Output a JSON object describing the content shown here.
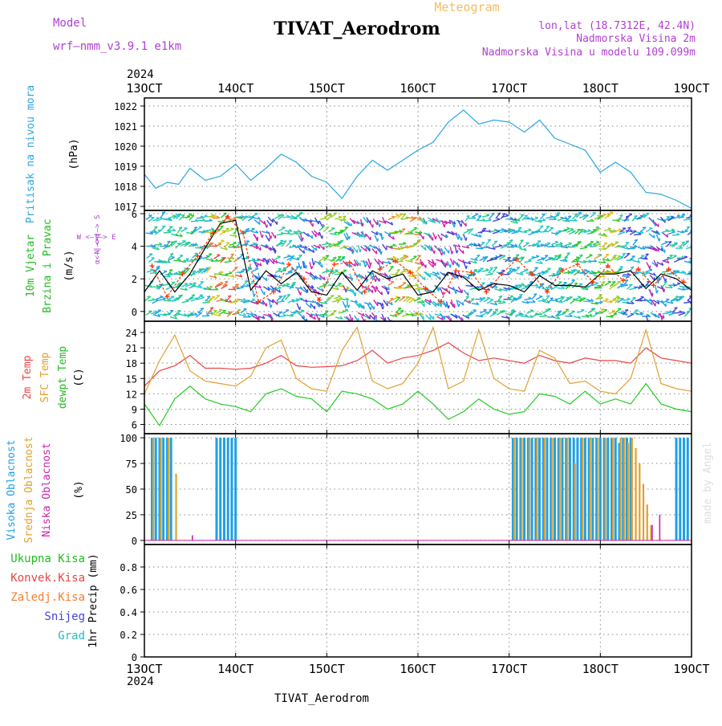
{
  "header": {
    "model_label": "Model",
    "model_value": "wrf—nmm_v3.9.1  e1km",
    "title": "TIVAT_Aerodrom",
    "meteogram": "Meteogram",
    "lonlat": "lon,lat (18.7312E, 42.4N)",
    "elev": "Nadmorska Visina 2m",
    "elev_model": "Nadmorska Visina u modelu 109.099m",
    "year_top": "2024",
    "year_bottom": "2024",
    "bottom_title": "TIVAT_Aerodrom",
    "credit": "made by Angel"
  },
  "colors": {
    "pressure": "#2aa7e0",
    "temp2m": "#e84545",
    "sfc": "#e0a030",
    "dewpt": "#22cc22",
    "high_cloud": "#1ea0e6",
    "mid_cloud": "#e0a030",
    "low_cloud": "#cc22aa",
    "wind_speed": "#000000",
    "gust": "#ff3300"
  },
  "x_ticks": [
    "13OCT",
    "14OCT",
    "15OCT",
    "16OCT",
    "17OCT",
    "18OCT",
    "19OCT"
  ],
  "panel_labels": {
    "pressure": {
      "lines": [
        {
          "text": "Pritisak na nivou mora",
          "color": "#2aa7e0"
        }
      ],
      "unit": "(hPa)"
    },
    "wind": {
      "lines": [
        {
          "text": "10m Vjetar",
          "color": "#22bb22"
        },
        {
          "text": "Brzina i Pravac",
          "color": "#22bb22"
        }
      ],
      "unit": "(m/s)",
      "compass_ns": "N <—|—> S",
      "compass_we": "W  <—|—>  E",
      "compass_alpha": "α<—|—>α"
    },
    "temp": {
      "lines": [
        {
          "text": "2m Temp",
          "color": "#e84545"
        },
        {
          "text": "SFC Temp",
          "color": "#e0a030"
        },
        {
          "text": "dewpt Temp",
          "color": "#22bb22"
        }
      ],
      "unit": "(C)"
    },
    "cloud": {
      "lines": [
        {
          "text": "Visoka Oblacnost",
          "color": "#1ea0e6"
        },
        {
          "text": "Srednja Oblacnost",
          "color": "#e0a030"
        },
        {
          "text": "Niska Oblacnost",
          "color": "#cc22aa"
        }
      ],
      "unit": "(%)"
    },
    "precip": {
      "legend": [
        {
          "text": "Ukupna Kisa",
          "color": "#22bb22"
        },
        {
          "text": "Konvek.Kisa",
          "color": "#e84545"
        },
        {
          "text": "Zaledj.Kisa",
          "color": "#f08030"
        },
        {
          "text": "Snijeg",
          "color": "#4444dd"
        },
        {
          "text": "Grad",
          "color": "#22bbbb"
        }
      ],
      "unit": "1hr Precip (mm)"
    }
  },
  "chart_data": [
    {
      "type": "line",
      "name": "pressure",
      "x_range": [
        "2024-10-13 00:00",
        "2024-10-19 00:00"
      ],
      "ylim": [
        1016.8,
        1022.4
      ],
      "yticks": [
        1017,
        1018,
        1019,
        1020,
        1021,
        1022
      ],
      "grid": true,
      "series": [
        {
          "x_hours": [
            0,
            3,
            6,
            9,
            12,
            16,
            20,
            24,
            28,
            32,
            36,
            40,
            44,
            48,
            52,
            56,
            60,
            64,
            68,
            72,
            76,
            80,
            84,
            88,
            92,
            96,
            100,
            104,
            108,
            112,
            116,
            120,
            124,
            128,
            132,
            136,
            140,
            144
          ],
          "values": [
            1018.6,
            1017.9,
            1018.2,
            1018.1,
            1018.9,
            1018.3,
            1018.5,
            1019.1,
            1018.3,
            1018.9,
            1019.6,
            1019.2,
            1018.5,
            1018.2,
            1017.4,
            1018.5,
            1019.3,
            1018.8,
            1019.3,
            1019.8,
            1020.2,
            1021.2,
            1021.8,
            1021.1,
            1021.3,
            1021.2,
            1020.7,
            1021.3,
            1020.4,
            1020.1,
            1019.8,
            1018.7,
            1019.2,
            1018.7,
            1017.7,
            1017.6,
            1017.3,
            1016.9
          ],
          "color": "#2aa7e0"
        }
      ]
    },
    {
      "type": "line",
      "name": "wind",
      "x_range": [
        "2024-10-13 00:00",
        "2024-10-19 00:00"
      ],
      "ylim": [
        -0.6,
        6.2
      ],
      "yticks": [
        0,
        2,
        4,
        6
      ],
      "grid": true,
      "series": [
        {
          "x_hours": [
            0,
            4,
            8,
            12,
            16,
            20,
            24,
            28,
            32,
            36,
            40,
            44,
            48,
            52,
            56,
            60,
            64,
            68,
            72,
            76,
            80,
            84,
            88,
            92,
            96,
            100,
            104,
            108,
            112,
            116,
            120,
            124,
            128,
            132,
            136,
            140,
            144
          ],
          "values": [
            1.2,
            2.5,
            1.2,
            2.3,
            3.9,
            5.4,
            5.6,
            1.3,
            2.5,
            1.7,
            2.4,
            1.2,
            1.0,
            2.4,
            1.3,
            2.5,
            2.0,
            2.3,
            1.0,
            1.2,
            2.4,
            2.1,
            1.3,
            1.7,
            1.6,
            1.2,
            2.2,
            1.6,
            1.6,
            1.5,
            2.3,
            2.3,
            2.5,
            1.4,
            2.3,
            2.0,
            1.3
          ],
          "color": "#000000"
        },
        {
          "x_hours": [
            2,
            6,
            10,
            14,
            18,
            22,
            26,
            30,
            34,
            38,
            42,
            46,
            50,
            54,
            58,
            62,
            66,
            70,
            74,
            78,
            82,
            86,
            90,
            94,
            98,
            102,
            106,
            110,
            114,
            118,
            122,
            126,
            130,
            134,
            138,
            142
          ],
          "values": [
            2.8,
            0.9,
            2.3,
            3.4,
            4.8,
            5.8,
            4.8,
            0.6,
            1.2,
            2.9,
            2.0,
            0.7,
            2.9,
            3.0,
            1.2,
            2.6,
            3.1,
            2.4,
            1.4,
            0.6,
            2.5,
            2.4,
            1.2,
            2.3,
            3.2,
            2.3,
            1.2,
            2.5,
            2.9,
            1.8,
            2.8,
            1.9,
            2.6,
            1.6,
            2.6,
            1.8
          ],
          "color": "#ff3300"
        }
      ]
    },
    {
      "type": "line",
      "name": "temperature",
      "x_range": [
        "2024-10-13 00:00",
        "2024-10-19 00:00"
      ],
      "ylim": [
        4.2,
        26.2
      ],
      "yticks": [
        6,
        9,
        12,
        15,
        18,
        21,
        24
      ],
      "grid": true,
      "series": [
        {
          "name": "2m Temp",
          "x_hours": [
            0,
            4,
            8,
            12,
            16,
            20,
            24,
            28,
            32,
            36,
            40,
            44,
            48,
            52,
            56,
            60,
            64,
            68,
            72,
            76,
            80,
            84,
            88,
            92,
            96,
            100,
            104,
            108,
            112,
            116,
            120,
            124,
            128,
            132,
            136,
            140,
            144
          ],
          "values": [
            13.5,
            16.5,
            17.5,
            19.5,
            17.0,
            17.0,
            16.8,
            17.0,
            18.0,
            19.5,
            17.5,
            17.2,
            17.3,
            17.5,
            18.5,
            20.5,
            18.0,
            19.0,
            19.5,
            20.5,
            22.0,
            20.0,
            18.5,
            19.0,
            18.5,
            18.0,
            19.5,
            18.5,
            18.0,
            19.0,
            18.5,
            18.5,
            18.0,
            21.0,
            19.0,
            18.5,
            18.0
          ],
          "color": "#e84545"
        },
        {
          "name": "SFC Temp",
          "x_hours": [
            0,
            4,
            8,
            12,
            16,
            20,
            24,
            28,
            32,
            36,
            40,
            44,
            48,
            52,
            56,
            60,
            64,
            68,
            72,
            76,
            80,
            84,
            88,
            92,
            96,
            100,
            104,
            108,
            112,
            116,
            120,
            124,
            128,
            132,
            136,
            140,
            144
          ],
          "values": [
            12.0,
            18.5,
            23.5,
            16.5,
            14.5,
            14.0,
            13.5,
            15.5,
            21.0,
            22.5,
            15.0,
            13.0,
            12.5,
            20.5,
            25.0,
            14.5,
            13.0,
            14.0,
            18.0,
            25.0,
            13.0,
            14.5,
            24.5,
            15.0,
            13.0,
            12.5,
            20.5,
            19.0,
            14.0,
            14.5,
            12.5,
            12.0,
            15.0,
            24.5,
            14.0,
            13.0,
            12.5
          ],
          "color": "#e0a030"
        },
        {
          "name": "dewpt Temp",
          "x_hours": [
            0,
            4,
            8,
            12,
            16,
            20,
            24,
            28,
            32,
            36,
            40,
            44,
            48,
            52,
            56,
            60,
            64,
            68,
            72,
            76,
            80,
            84,
            88,
            92,
            96,
            100,
            104,
            108,
            112,
            116,
            120,
            124,
            128,
            132,
            136,
            140,
            144
          ],
          "values": [
            10.0,
            5.8,
            11.0,
            13.5,
            11.0,
            10.0,
            9.5,
            8.5,
            12.0,
            13.0,
            11.5,
            11.0,
            8.5,
            12.5,
            12.0,
            11.0,
            9.0,
            10.0,
            12.5,
            10.0,
            7.0,
            8.5,
            11.0,
            9.0,
            8.0,
            8.5,
            12.0,
            11.5,
            10.0,
            12.5,
            10.0,
            11.0,
            10.0,
            14.0,
            10.0,
            9.0,
            8.5
          ],
          "color": "#22cc22"
        }
      ]
    },
    {
      "type": "bar",
      "name": "cloud_cover",
      "x_range": [
        "2024-10-13 00:00",
        "2024-10-19 00:00"
      ],
      "ylim": [
        -4,
        104
      ],
      "yticks": [
        0,
        25,
        50,
        75,
        100
      ],
      "grid": true,
      "series": [
        {
          "name": "Visoka Oblacnost",
          "color": "#1ea0e6",
          "x_hours": [
            2,
            3,
            4,
            5,
            6,
            7,
            19,
            20,
            21,
            22,
            23,
            24,
            97,
            98,
            99,
            100,
            101,
            102,
            103,
            104,
            105,
            106,
            107,
            108,
            109,
            110,
            111,
            112,
            113,
            114,
            115,
            116,
            117,
            118,
            119,
            120,
            121,
            122,
            123,
            124,
            125,
            126,
            127,
            128,
            140,
            141,
            142,
            143
          ],
          "values": [
            100,
            100,
            100,
            100,
            100,
            100,
            100,
            100,
            100,
            100,
            100,
            100,
            100,
            100,
            100,
            100,
            100,
            100,
            100,
            100,
            100,
            100,
            100,
            100,
            100,
            100,
            100,
            100,
            100,
            100,
            100,
            100,
            100,
            100,
            100,
            100,
            100,
            100,
            100,
            100,
            95,
            100,
            100,
            100,
            100,
            100,
            100,
            100
          ]
        },
        {
          "name": "Srednja Oblacnost",
          "color": "#e0a030",
          "x_hours": [
            2,
            4,
            6,
            8,
            97,
            99,
            101,
            103,
            105,
            107,
            109,
            111,
            113,
            115,
            117,
            119,
            121,
            123,
            125,
            126,
            127,
            128,
            129,
            130,
            131,
            132,
            133
          ],
          "values": [
            100,
            100,
            100,
            65,
            100,
            100,
            100,
            100,
            100,
            100,
            100,
            100,
            75,
            100,
            100,
            100,
            100,
            100,
            100,
            100,
            95,
            100,
            90,
            75,
            55,
            35,
            15
          ],
          "color_note": ""
        },
        {
          "name": "Niska Oblacnost",
          "color": "#cc22aa",
          "x_hours": [
            12,
            133,
            135
          ],
          "values": [
            5,
            15,
            25
          ]
        }
      ]
    },
    {
      "type": "bar",
      "name": "precip",
      "x_range": [
        "2024-10-13 00:00",
        "2024-10-19 00:00"
      ],
      "ylim": [
        0,
        1.0
      ],
      "yticks": [
        0,
        0.2,
        0.4,
        0.6,
        0.8
      ],
      "grid": true,
      "series": []
    }
  ]
}
